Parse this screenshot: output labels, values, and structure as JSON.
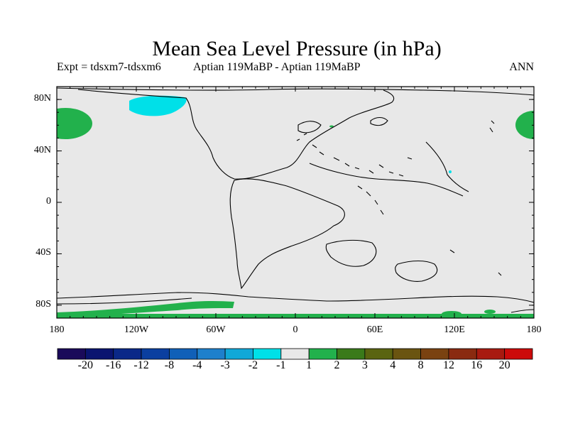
{
  "title": "Mean Sea Level Pressure (in hPa)",
  "left_string": "Expt = tdsxm7-tdsxm6",
  "center_string": "Aptian   119MaBP - Aptian   119MaBP",
  "right_string": "ANN",
  "lat_ticks": [
    {
      "value": 80,
      "label": "80N"
    },
    {
      "value": 40,
      "label": "40N"
    },
    {
      "value": 0,
      "label": "0"
    },
    {
      "value": -40,
      "label": "40S"
    },
    {
      "value": -80,
      "label": "80S"
    }
  ],
  "lon_ticks": [
    {
      "value": -180,
      "label": "180"
    },
    {
      "value": -120,
      "label": "120W"
    },
    {
      "value": -60,
      "label": "60W"
    },
    {
      "value": 0,
      "label": "0"
    },
    {
      "value": 60,
      "label": "60E"
    },
    {
      "value": 120,
      "label": "120E"
    },
    {
      "value": 180,
      "label": "180"
    }
  ],
  "colorbar": {
    "colors": [
      "#1a0a5a",
      "#0a1470",
      "#0a2888",
      "#0a3fa0",
      "#1060b8",
      "#1e80cc",
      "#10a8d8",
      "#00e0e8",
      "#e8e8e8",
      "#22b14c",
      "#3a7a1a",
      "#5a6410",
      "#6a5410",
      "#7a4210",
      "#8a2a10",
      "#a81a10",
      "#cc0a0a"
    ],
    "labels": [
      "-20",
      "-16",
      "-12",
      "-8",
      "-4",
      "-3",
      "-2",
      "-1",
      "1",
      "2",
      "3",
      "4",
      "8",
      "12",
      "16",
      "20"
    ]
  },
  "colors": {
    "land_sea_background": "#e8e8e8",
    "positive_anomaly": "#22b14c",
    "negative_anomaly": "#00e0e8",
    "coastline": "#000000"
  }
}
